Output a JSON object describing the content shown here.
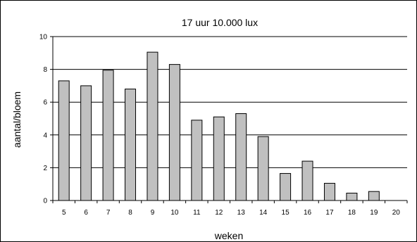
{
  "chart_data": {
    "type": "bar",
    "title": "17 uur 10.000 lux",
    "xlabel": "weken",
    "ylabel": "aantal/bloem",
    "categories": [
      "5",
      "6",
      "7",
      "8",
      "9",
      "10",
      "11",
      "12",
      "13",
      "14",
      "15",
      "16",
      "17",
      "18",
      "19",
      "20"
    ],
    "values": [
      7.3,
      7.0,
      7.95,
      6.8,
      9.05,
      8.3,
      4.9,
      5.1,
      5.3,
      3.9,
      1.65,
      2.4,
      1.05,
      0.45,
      0.55,
      0
    ],
    "ylim": [
      0,
      10
    ],
    "yticks": [
      0,
      2,
      4,
      6,
      8,
      10
    ],
    "grid": "horizontal",
    "bar_color": "#c0c0c0",
    "bar_edge_color": "#000000"
  }
}
